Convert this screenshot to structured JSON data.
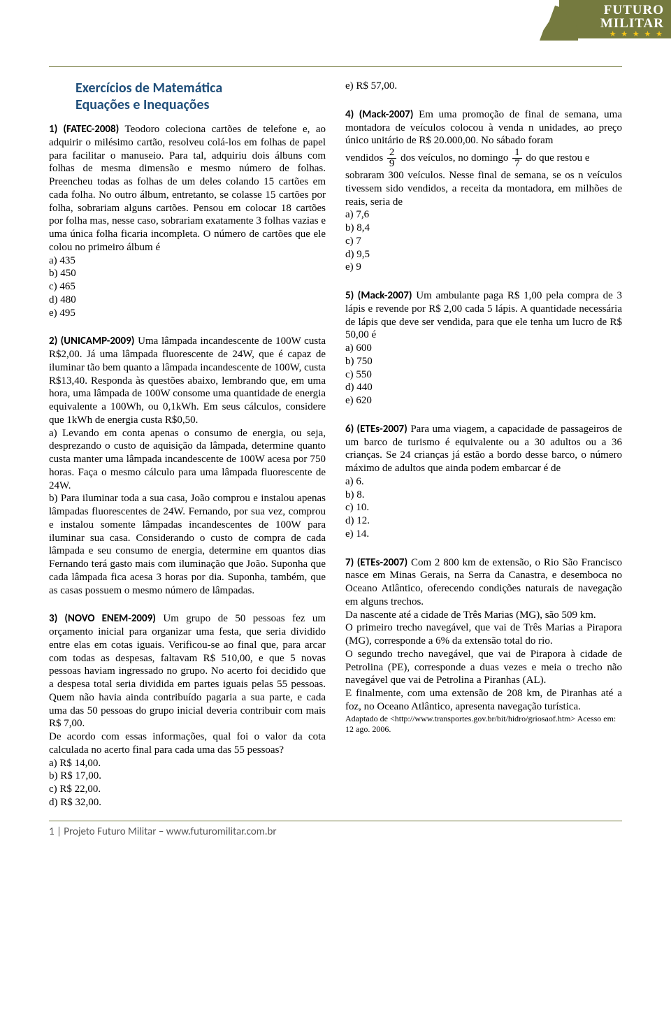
{
  "logo": {
    "line1": "FUTURO",
    "line2": "MILITAR",
    "stars": "★ ★ ★ ★ ★"
  },
  "title": {
    "l1": "Exercícios de Matemática",
    "l2": "Equações e Inequações"
  },
  "q1": {
    "lead": "1) (FATEC-2008)",
    "body": " Teodoro coleciona cartões de telefone e, ao adquirir o milésimo cartão, resolveu colá-los em folhas de papel para facilitar o manuseio. Para tal, adquiriu dois álbuns com folhas de mesma dimensão e mesmo número de folhas. Preencheu todas as folhas de um deles colando 15 cartões em cada folha. No outro álbum, entretanto, se colasse 15 cartões por folha, sobrariam alguns cartões. Pensou em colocar 18 cartões por folha mas, nesse caso, sobrariam exatamente 3 folhas vazias e uma única folha ficaria incompleta. O número de cartões que ele colou no primeiro álbum é",
    "a": "a) 435",
    "b": "b) 450",
    "c": "c) 465",
    "d": "d) 480",
    "e": "e) 495"
  },
  "q2": {
    "lead": "2) (UNICAMP-2009)",
    "body": " Uma lâmpada incandescente de 100W custa R$2,00. Já uma lâmpada fluorescente de 24W, que é capaz de iluminar tão bem quanto a lâmpada incandescente de 100W, custa R$13,40. Responda às questões abaixo, lembrando que, em uma hora, uma lâmpada de 100W consome uma quantidade de energia equivalente a 100Wh, ou 0,1kWh. Em seus cálculos, considere que 1kWh de energia custa R$0,50.",
    "pa": "a) Levando em conta apenas o consumo de energia, ou seja, desprezando o custo de aquisição da lâmpada, determine quanto custa manter uma lâmpada incandescente de 100W acesa por 750 horas. Faça o mesmo cálculo para uma lâmpada fluorescente de 24W.",
    "pb": "b) Para iluminar toda a sua casa, João comprou e instalou apenas lâmpadas fluorescentes de 24W. Fernando, por sua vez, comprou e instalou somente lâmpadas incandescentes de 100W para iluminar sua casa. Considerando o custo de compra de cada lâmpada e seu consumo de energia, determine em quantos dias Fernando terá gasto mais com iluminação que João. Suponha que cada lâmpada fica acesa 3 horas por dia. Suponha, também, que as casas possuem o mesmo número de lâmpadas."
  },
  "q3": {
    "lead": "3) (NOVO ENEM-2009)",
    "body": " Um grupo de 50 pessoas fez um orçamento inicial para organizar uma festa, que seria dividido entre elas em cotas iguais. Verificou-se ao final que, para arcar com todas as despesas, faltavam R$ 510,00, e que 5 novas pessoas haviam ingressado no grupo. No acerto foi decidido que a despesa total seria dividida em partes iguais pelas 55 pessoas. Quem não havia ainda contribuído pagaria a sua parte, e cada uma das 50 pessoas do grupo inicial deveria contribuir com mais R$ 7,00.",
    "ask": "De acordo com essas informações, qual foi o valor da cota calculada no acerto final para cada uma das 55 pessoas?",
    "a": "a) R$ 14,00.",
    "b": "b) R$ 17,00.",
    "c": "c) R$ 22,00.",
    "d": "d) R$ 32,00.",
    "e": "e) R$ 57,00."
  },
  "q4": {
    "lead": "4) (Mack-2007)",
    "p1": " Em uma promoção de final de semana, uma montadora de veículos colocou à venda n unidades, ao preço único unitário de R$ 20.000,00. No sábado foram ",
    "t1": "vendidos ",
    "f1n": "2",
    "f1d": "9",
    "t2": " dos veículos, no domingo ",
    "f2n": "1",
    "f2d": "7",
    "t3": " do que restou e ",
    "p2": "sobraram 300 veículos. Nesse final de semana, se os n veículos tivessem sido vendidos, a receita da montadora, em milhões de reais, seria de",
    "a": "a) 7,6",
    "b": "b) 8,4",
    "c": "c) 7",
    "d": "d) 9,5",
    "e": "e) 9"
  },
  "q5": {
    "lead": "5) (Mack-2007)",
    "body": " Um ambulante paga R$ 1,00 pela compra de 3 lápis e revende por R$ 2,00 cada 5 lápis. A quantidade necessária de lápis que deve ser vendida, para que ele tenha um lucro de R$ 50,00 é",
    "a": "a) 600",
    "b": "b) 750",
    "c": "c) 550",
    "d": "d) 440",
    "e": "e) 620"
  },
  "q6": {
    "lead": "6) (ETEs-2007)",
    "body": " Para uma viagem, a capacidade de passageiros de um barco de turismo é equivalente ou a 30 adultos ou a 36 crianças. Se 24 crianças já estão a bordo desse barco, o número máximo de adultos que ainda podem embarcar é de",
    "a": "a) 6.",
    "b": "b) 8.",
    "c": "c) 10.",
    "d": "d) 12.",
    "e": "e) 14."
  },
  "q7": {
    "lead": "7) (ETEs-2007)",
    "p1": " Com 2 800 km de extensão, o Rio São Francisco nasce em Minas Gerais, na Serra da Canastra, e desemboca no Oceano Atlântico, oferecendo condições naturais de navegação em alguns trechos.",
    "b1": " Da nascente até a cidade de Três Marias (MG), são 509 km.",
    "b2": " O primeiro trecho navegável, que vai de Três Marias a Pirapora (MG), corresponde a 6% da extensão total do rio.",
    "b3": " O segundo trecho navegável, que vai de Pirapora à cidade de Petrolina (PE), corresponde a duas vezes e meia o trecho não navegável que vai de Petrolina a Piranhas (AL).",
    "b4": " E finalmente, com uma extensão de 208 km, de Piranhas até a foz, no Oceano Atlântico, apresenta navegação turística.",
    "src": "Adaptado de <http://www.transportes.gov.br/bit/hidro/griosaof.htm> Acesso em: 12 ago. 2006."
  },
  "footer": "1 | Projeto Futuro Militar – www.futuromilitar.com.br"
}
